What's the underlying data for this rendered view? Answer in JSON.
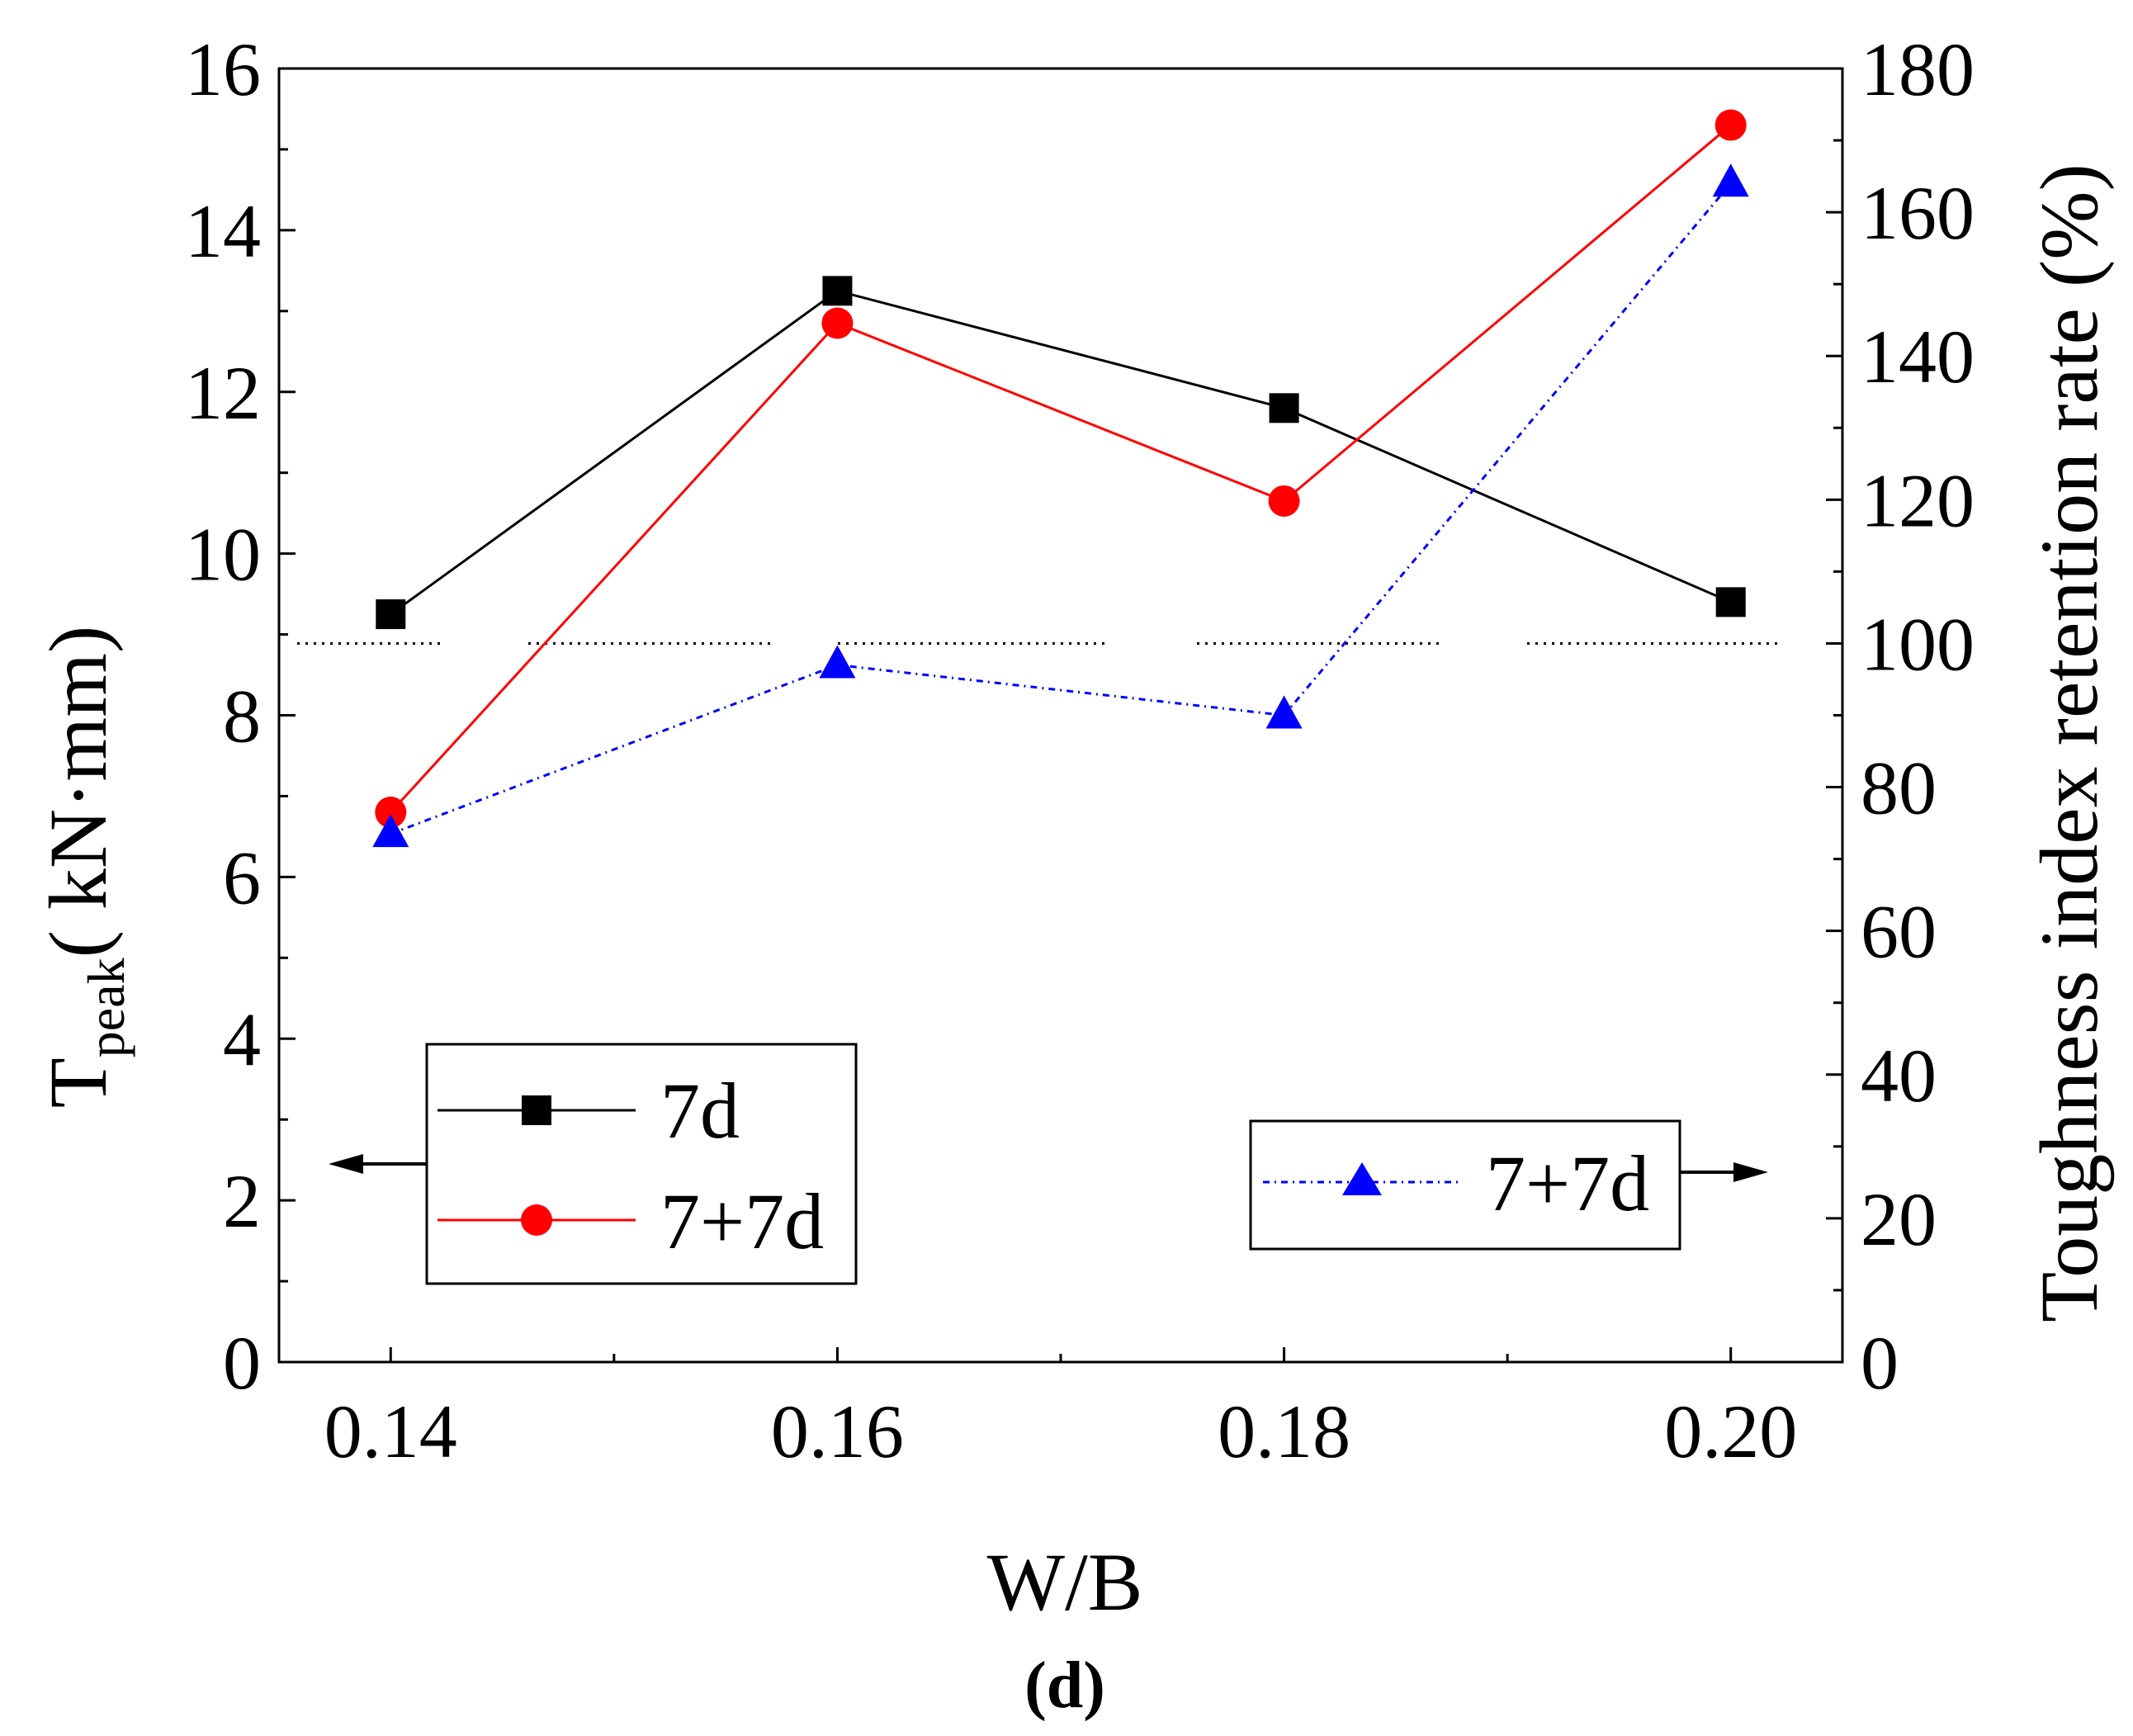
{
  "chart_data": {
    "type": "line",
    "panel_label": "(d)",
    "xlabel": "W/B",
    "x": [
      0.14,
      0.16,
      0.18,
      0.2
    ],
    "x_tick_labels": [
      "0.14",
      "0.16",
      "0.18",
      "0.20"
    ],
    "xlim": [
      0.135,
      0.205
    ],
    "y_left": {
      "label_main": "T",
      "label_sub": "peak",
      "label_units": "(  kN·mm)",
      "ylim": [
        0,
        16
      ],
      "ticks": [
        0,
        2,
        4,
        6,
        8,
        10,
        12,
        14,
        16
      ]
    },
    "y_right": {
      "label": "Toughness index retention rate (%)",
      "ylim": [
        0,
        180
      ],
      "ticks": [
        0,
        20,
        40,
        60,
        80,
        100,
        120,
        140,
        160,
        180
      ],
      "reference_line": 100
    },
    "series": [
      {
        "name": "7d",
        "axis": "left",
        "color": "#000000",
        "marker": "square",
        "values": [
          9.25,
          13.25,
          11.8,
          9.4
        ]
      },
      {
        "name": "7+7d",
        "axis": "left",
        "color": "#ff0000",
        "marker": "circle",
        "values": [
          6.8,
          12.85,
          10.65,
          15.3
        ]
      },
      {
        "name": "7+7d",
        "axis": "right",
        "color": "#0000ff",
        "marker": "triangle",
        "dashed": true,
        "values": [
          73.5,
          97,
          90,
          164
        ]
      }
    ]
  }
}
